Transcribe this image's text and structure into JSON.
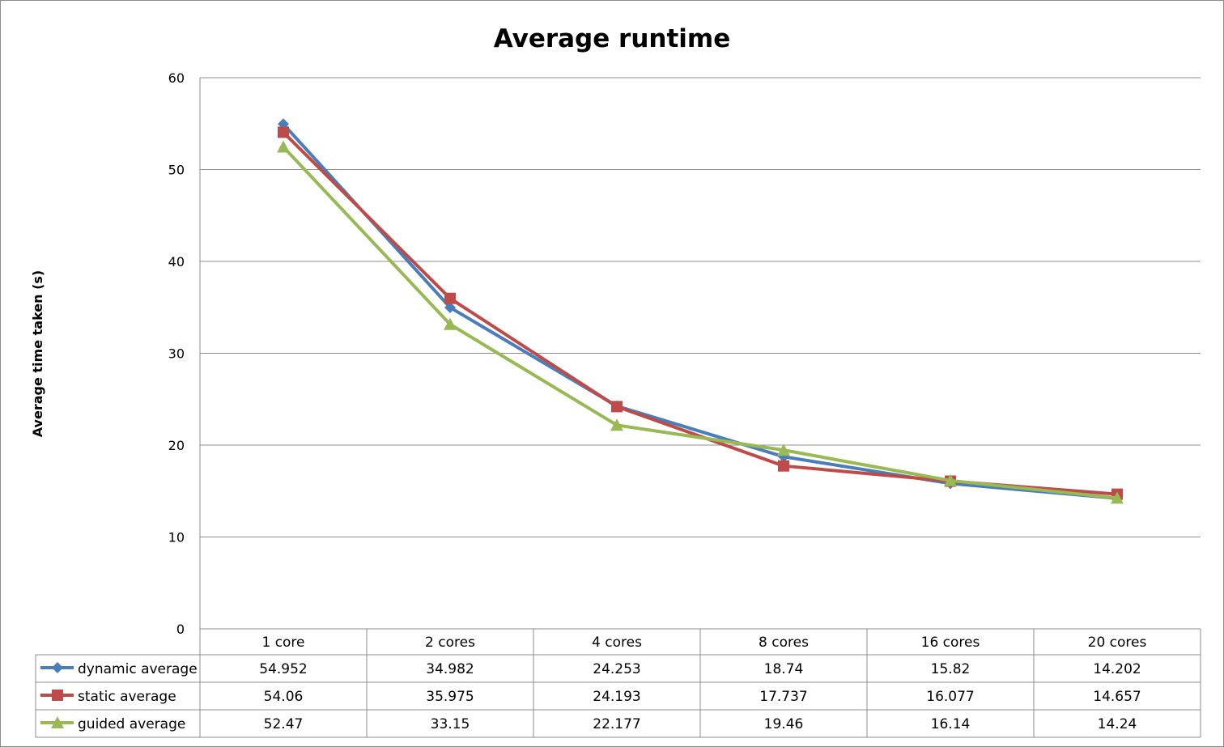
{
  "chart_data": {
    "type": "line",
    "title": "Average runtime",
    "ylabel": "Average time taken (s)",
    "xlabel": "",
    "ylim": [
      0,
      60
    ],
    "yticks": [
      "0",
      "10",
      "20",
      "30",
      "40",
      "50",
      "60"
    ],
    "categories": [
      "1 core",
      "2 cores",
      "4 cores",
      "8 cores",
      "16 cores",
      "20 cores"
    ],
    "grid": "horizontal",
    "legend": "data-table-left",
    "series": [
      {
        "name": "dynamic average",
        "color": "#4a7ebb",
        "marker": "diamond",
        "values": [
          54.952,
          34.982,
          24.253,
          18.74,
          15.82,
          14.202
        ],
        "labels": [
          "54.952",
          "34.982",
          "24.253",
          "18.74",
          "15.82",
          "14.202"
        ]
      },
      {
        "name": "static average",
        "color": "#be4b48",
        "marker": "square",
        "values": [
          54.06,
          35.975,
          24.193,
          17.737,
          16.077,
          14.657
        ],
        "labels": [
          "54.06",
          "35.975",
          "24.193",
          "17.737",
          "16.077",
          "14.657"
        ]
      },
      {
        "name": "guided average",
        "color": "#98b954",
        "marker": "triangle",
        "values": [
          52.47,
          33.15,
          22.177,
          19.46,
          16.14,
          14.24
        ],
        "labels": [
          "52.47",
          "33.15",
          "22.177",
          "19.46",
          "16.14",
          "14.24"
        ]
      }
    ]
  }
}
